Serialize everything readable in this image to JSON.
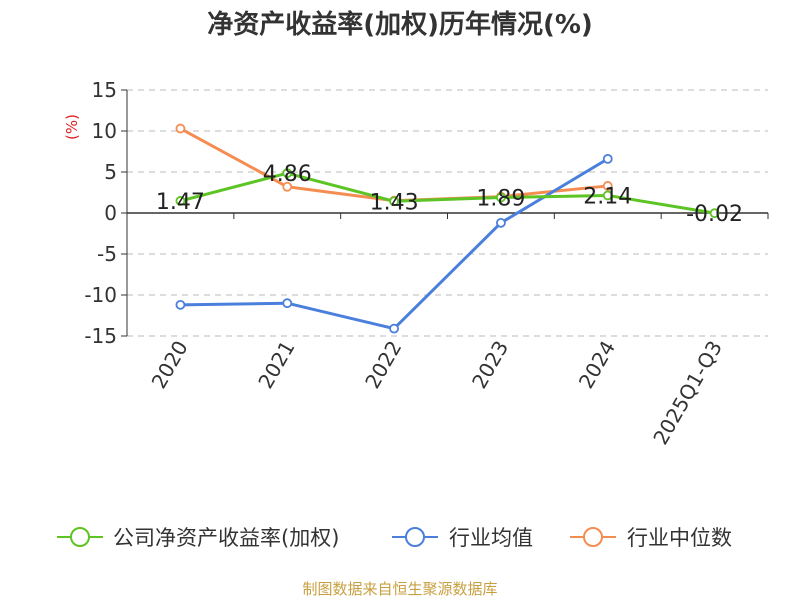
{
  "chart_data": {
    "type": "line",
    "title": "净资产收益率(加权)历年情况(%)",
    "ylabel": "(%)",
    "xlabel": "",
    "ylim": [
      -15,
      15
    ],
    "yticks": [
      15,
      10,
      5,
      0,
      -5,
      -10,
      -15
    ],
    "ytick_labels": [
      "15",
      "10",
      "5",
      "0",
      "-5",
      "-10",
      "-15"
    ],
    "categories": [
      "2020",
      "2021",
      "2022",
      "2023",
      "2024",
      "2025Q1-Q3"
    ],
    "grid": true,
    "legend_position": "bottom",
    "series": [
      {
        "name": "公司净资产收益率(加权)",
        "color": "#5cc424",
        "values": [
          1.47,
          4.86,
          1.43,
          1.89,
          2.14,
          -0.02
        ],
        "labels": [
          "1.47",
          "4.86",
          "1.43",
          "1.89",
          "2.14",
          "-0.02"
        ]
      },
      {
        "name": "行业均值",
        "color": "#4a7fdc",
        "values": [
          -11.2,
          -11.0,
          -14.1,
          -1.2,
          6.6,
          null
        ]
      },
      {
        "name": "行业中位数",
        "color": "#f58d52",
        "values": [
          10.3,
          3.2,
          1.5,
          2.0,
          3.3,
          null
        ]
      }
    ]
  },
  "footer": {
    "source": "制图数据来自恒生聚源数据库"
  }
}
